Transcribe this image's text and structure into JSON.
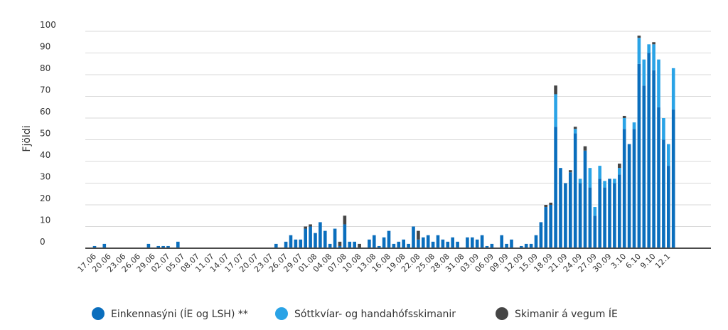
{
  "chart_data": {
    "type": "bar",
    "stacked": true,
    "ylabel": "Fjöldi",
    "xlabel": "",
    "ylim": [
      0,
      100
    ],
    "yticks": [
      0,
      10,
      20,
      30,
      40,
      50,
      60,
      70,
      80,
      90,
      100
    ],
    "grid": true,
    "legend_position": "bottom",
    "colors": {
      "Einkennasýni (ÍE og LSH) **": "#0a6ebd",
      "Sóttkvíar- og handahófsskimanir": "#2aa3e6",
      "Skimanir á vegum ÍE": "#454545"
    },
    "categories": [
      "17.06",
      "18.06",
      "19.06",
      "20.06",
      "21.06",
      "22.06",
      "23.06",
      "24.06",
      "25.06",
      "26.06",
      "27.06",
      "28.06",
      "29.06",
      "30.06",
      "01.07",
      "02.07",
      "03.07",
      "04.07",
      "05.07",
      "06.07",
      "07.07",
      "08.07",
      "09.07",
      "10.07",
      "11.07",
      "12.07",
      "13.07",
      "14.07",
      "15.07",
      "16.07",
      "17.07",
      "18.07",
      "19.07",
      "20.07",
      "21.07",
      "22.07",
      "23.07",
      "24.07",
      "25.07",
      "26.07",
      "27.07",
      "28.07",
      "29.07",
      "30.07",
      "31.07",
      "01.08",
      "02.08",
      "03.08",
      "04.08",
      "05.08",
      "06.08",
      "07.08",
      "08.08",
      "09.08",
      "10.08",
      "11.08",
      "12.08",
      "13.08",
      "14.08",
      "15.08",
      "16.08",
      "17.08",
      "18.08",
      "19.08",
      "20.08",
      "21.08",
      "22.08",
      "23.08",
      "24.08",
      "25.08",
      "26.08",
      "27.08",
      "28.08",
      "29.08",
      "30.08",
      "31.08",
      "01.09",
      "02.09",
      "03.09",
      "04.09",
      "05.09",
      "06.09",
      "07.09",
      "08.09",
      "09.09",
      "10.09",
      "11.09",
      "12.09",
      "13.09",
      "14.09",
      "15.09",
      "16.09",
      "17.09",
      "18.09",
      "19.09",
      "20.09",
      "21.09",
      "22.09",
      "23.09",
      "24.09",
      "25.09",
      "26.09",
      "27.09",
      "28.09",
      "29.09",
      "30.09",
      "1.10",
      "2.10",
      "3.10",
      "4.10",
      "5.10",
      "6.10",
      "7.10",
      "8.10",
      "9.10",
      "10.10",
      "11.10",
      "12.10",
      "13.10"
    ],
    "xtick_labels": [
      "17.06",
      "20.06",
      "23.06",
      "26.06",
      "29.06",
      "02.07",
      "05.07",
      "08.07",
      "11.07",
      "14.07",
      "17.07",
      "20.07",
      "23.07",
      "26.07",
      "29.07",
      "01.08",
      "04.08",
      "07.08",
      "10.08",
      "13.08",
      "16.08",
      "19.08",
      "22.08",
      "25.08",
      "28.08",
      "31.08",
      "03.09",
      "06.09",
      "09.09",
      "12.09",
      "15.09",
      "18.09",
      "21.09",
      "24.09",
      "27.09",
      "30.09",
      "3.10",
      "6.10",
      "9.10",
      "12.1"
    ],
    "series": [
      {
        "name": "Einkennasýni (ÍE og LSH) **",
        "values": [
          1,
          0,
          2,
          0,
          0,
          0,
          0,
          0,
          0,
          0,
          0,
          2,
          0,
          1,
          1,
          1,
          0,
          3,
          0,
          0,
          0,
          0,
          0,
          0,
          0,
          0,
          0,
          0,
          0,
          0,
          0,
          0,
          0,
          0,
          0,
          0,
          0,
          2,
          0,
          3,
          6,
          4,
          4,
          9,
          10,
          7,
          12,
          8,
          2,
          9,
          1,
          11,
          3,
          3,
          0,
          0,
          4,
          6,
          1,
          5,
          8,
          2,
          3,
          4,
          2,
          10,
          4,
          5,
          6,
          3,
          6,
          4,
          3,
          5,
          3,
          0,
          5,
          5,
          4,
          6,
          1,
          2,
          0,
          6,
          2,
          4,
          0,
          1,
          2,
          2,
          6,
          12,
          19,
          20,
          56,
          37,
          30,
          35,
          53,
          30,
          45,
          28,
          15,
          32,
          28,
          32,
          30,
          34,
          55,
          48,
          55,
          85,
          75,
          90,
          82,
          65,
          50,
          38,
          64
        ]
      },
      {
        "name": "Sóttkvíar- og handahófsskimanir",
        "values": [
          0,
          0,
          0,
          0,
          0,
          0,
          0,
          0,
          0,
          0,
          0,
          0,
          0,
          0,
          0,
          0,
          0,
          0,
          0,
          0,
          0,
          0,
          0,
          0,
          0,
          0,
          0,
          0,
          0,
          0,
          0,
          0,
          0,
          0,
          0,
          0,
          0,
          0,
          0,
          0,
          0,
          0,
          0,
          0,
          0,
          0,
          0,
          0,
          0,
          0,
          0,
          0,
          0,
          0,
          0,
          0,
          0,
          0,
          0,
          0,
          0,
          0,
          0,
          0,
          0,
          0,
          0,
          0,
          0,
          0,
          0,
          0,
          0,
          0,
          0,
          0,
          0,
          0,
          0,
          0,
          0,
          0,
          0,
          0,
          0,
          0,
          0,
          0,
          0,
          0,
          0,
          0,
          0,
          0,
          15,
          0,
          0,
          0,
          2,
          2,
          0,
          9,
          4,
          6,
          3,
          0,
          2,
          3,
          5,
          0,
          3,
          12,
          12,
          4,
          12,
          22,
          10,
          10,
          19
        ]
      },
      {
        "name": "Skimanir á vegum ÍE",
        "values": [
          0,
          0,
          0,
          0,
          0,
          0,
          0,
          0,
          0,
          0,
          0,
          0,
          0,
          0,
          0,
          0,
          0,
          0,
          0,
          0,
          0,
          0,
          0,
          0,
          0,
          0,
          0,
          0,
          0,
          0,
          0,
          0,
          0,
          0,
          0,
          0,
          0,
          0,
          0,
          0,
          0,
          0,
          0,
          1,
          1,
          0,
          0,
          0,
          0,
          0,
          2,
          4,
          0,
          0,
          2,
          0,
          0,
          0,
          0,
          0,
          0,
          0,
          0,
          0,
          0,
          0,
          4,
          0,
          0,
          0,
          0,
          0,
          0,
          0,
          0,
          0,
          0,
          0,
          0,
          0,
          0,
          0,
          0,
          0,
          0,
          0,
          0,
          0,
          0,
          0,
          0,
          0,
          1,
          1,
          4,
          0,
          0,
          1,
          1,
          0,
          2,
          0,
          0,
          0,
          0,
          0,
          0,
          2,
          1,
          0,
          0,
          1,
          0,
          0,
          1,
          0,
          0,
          0,
          0
        ]
      }
    ]
  }
}
